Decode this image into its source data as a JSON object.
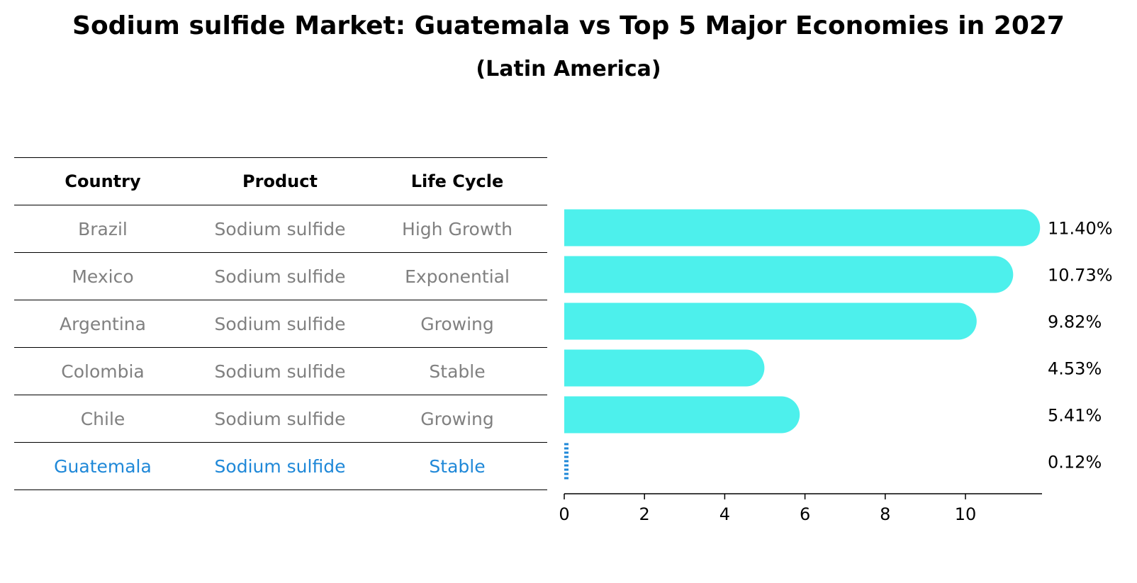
{
  "chart_data": {
    "type": "bar",
    "orientation": "horizontal",
    "title": "Sodium sulfide Market: Guatemala vs Top 5 Major Economies in 2027",
    "subtitle": "(Latin America)",
    "categories": [
      "Brazil",
      "Mexico",
      "Argentina",
      "Colombia",
      "Chile",
      "Guatemala"
    ],
    "values": [
      11.4,
      10.73,
      9.82,
      4.53,
      5.41,
      0.12
    ],
    "value_labels": [
      "11.40%",
      "10.73%",
      "9.82%",
      "4.53%",
      "5.41%",
      "0.12%"
    ],
    "highlight_category": "Guatemala",
    "xlim": [
      0,
      12
    ],
    "xticks": [
      "0",
      "2",
      "4",
      "6",
      "8",
      "10"
    ],
    "xlabel": "",
    "ylabel": "",
    "grid": false,
    "colors": {
      "bar": "#4df0ec",
      "highlight": "#1f88d8",
      "muted_text": "#808080"
    }
  },
  "table": {
    "headers": [
      "Country",
      "Product",
      "Life Cycle"
    ],
    "rows": [
      [
        "Brazil",
        "Sodium sulfide",
        "High Growth"
      ],
      [
        "Mexico",
        "Sodium sulfide",
        "Exponential"
      ],
      [
        "Argentina",
        "Sodium sulfide",
        "Growing"
      ],
      [
        "Colombia",
        "Sodium sulfide",
        "Stable"
      ],
      [
        "Chile",
        "Sodium sulfide",
        "Growing"
      ],
      [
        "Guatemala",
        "Sodium sulfide",
        "Stable"
      ]
    ]
  }
}
